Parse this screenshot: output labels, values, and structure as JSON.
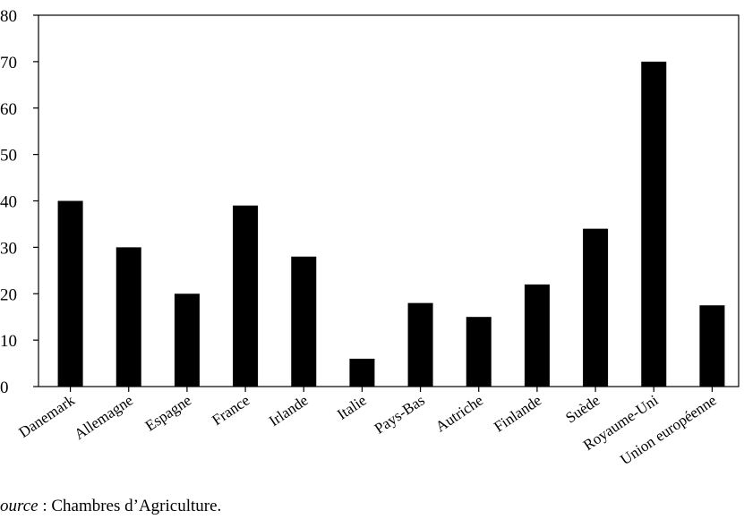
{
  "chart_data": {
    "type": "bar",
    "categories": [
      "Danemark",
      "Allemagne",
      "Espagne",
      "France",
      "Irlande",
      "Italie",
      "Pays-Bas",
      "Autriche",
      "Finlande",
      "Suède",
      "Royaume-Uni",
      "Union européenne"
    ],
    "values": [
      40,
      30,
      20,
      39,
      28,
      6,
      18,
      15,
      22,
      34,
      70,
      17.5
    ],
    "ylim": [
      0,
      80
    ],
    "yticks": [
      0,
      10,
      20,
      30,
      40,
      50,
      60,
      70,
      80
    ],
    "bar_color": "#000000",
    "grid": false,
    "title": "",
    "xlabel": "",
    "ylabel": ""
  },
  "source": {
    "label": "ource",
    "text": " : Chambres d’Agriculture."
  }
}
